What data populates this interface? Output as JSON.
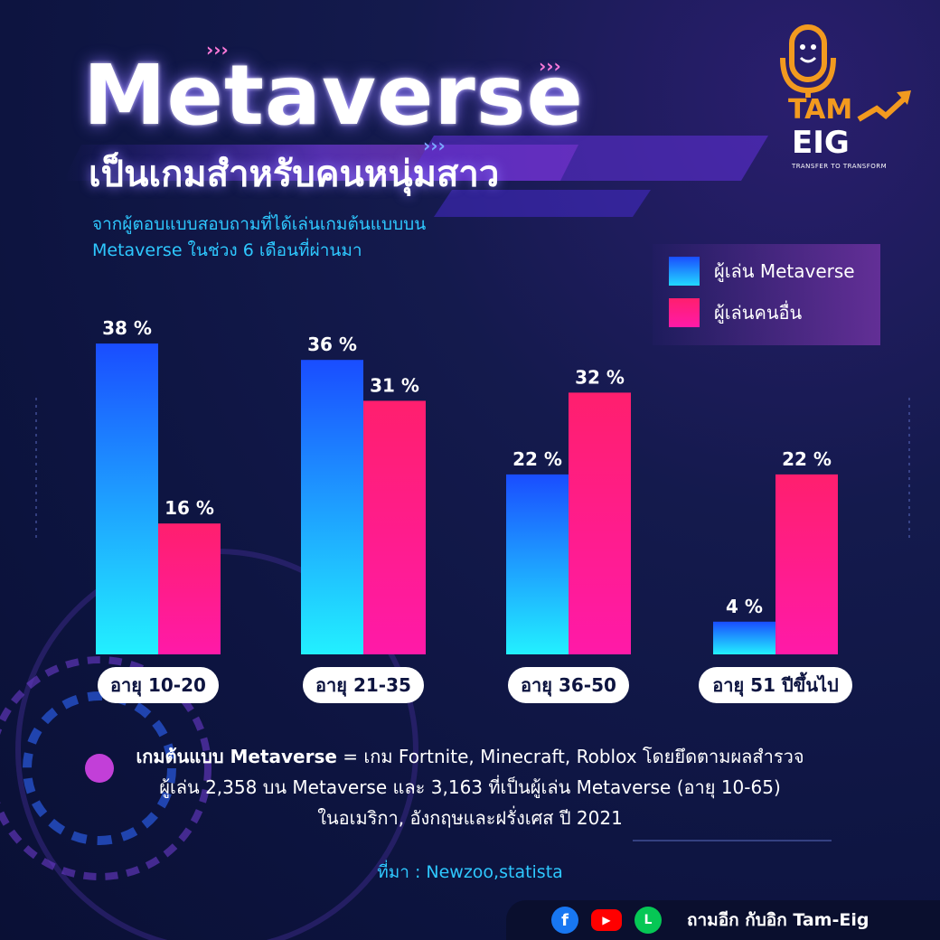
{
  "header": {
    "title": "Metaverse",
    "subtitle": "เป็นเกมสำหรับคนหนุ่มสาว",
    "description_line1": "จากผู้ตอบแบบสอบถามที่ได้เล่นเกมต้นแบบบน",
    "description_line2": "Metaverse ในช่วง 6 เดือนที่ผ่านมา"
  },
  "logo": {
    "line1": "TAM",
    "line2": "EIG",
    "tagline": "TRANSFER TO TRANSFORM"
  },
  "chart_data": {
    "type": "bar",
    "categories": [
      "อายุ 10-20",
      "อายุ 21-35",
      "อายุ 36-50",
      "อายุ 51 ปีขึ้นไป"
    ],
    "series": [
      {
        "name": "ผู้เล่น Metaverse",
        "values": [
          38,
          36,
          22,
          4
        ],
        "color": "#1a4dff",
        "color_bottom": "#22f0ff"
      },
      {
        "name": "ผู้เล่นคนอื่น",
        "values": [
          16,
          31,
          32,
          22
        ],
        "color": "#ff1f6e",
        "color_bottom": "#ff1aa8"
      }
    ],
    "value_suffix": " %",
    "ylim": [
      0,
      40
    ],
    "grid": false,
    "legend": "top-right"
  },
  "note": {
    "bold": "เกมต้นแบบ Metaverse",
    "line1_rest": " = เกม Fortnite, Minecraft, Roblox โดยยึดตามผลสำรวจ",
    "line2": "ผู้เล่น 2,358 บน Metaverse และ 3,163 ที่เป็นผู้เล่น Metaverse (อายุ 10-65)",
    "line3": "ในอเมริกา, อังกฤษและฝรั่งเศส ปี 2021"
  },
  "source": "ที่มา : Newzoo,statista",
  "footer": {
    "facebook_icon": "f",
    "youtube_icon": "▶",
    "line_icon": "L",
    "text": "ถามอีก กับอิก Tam-Eig"
  }
}
